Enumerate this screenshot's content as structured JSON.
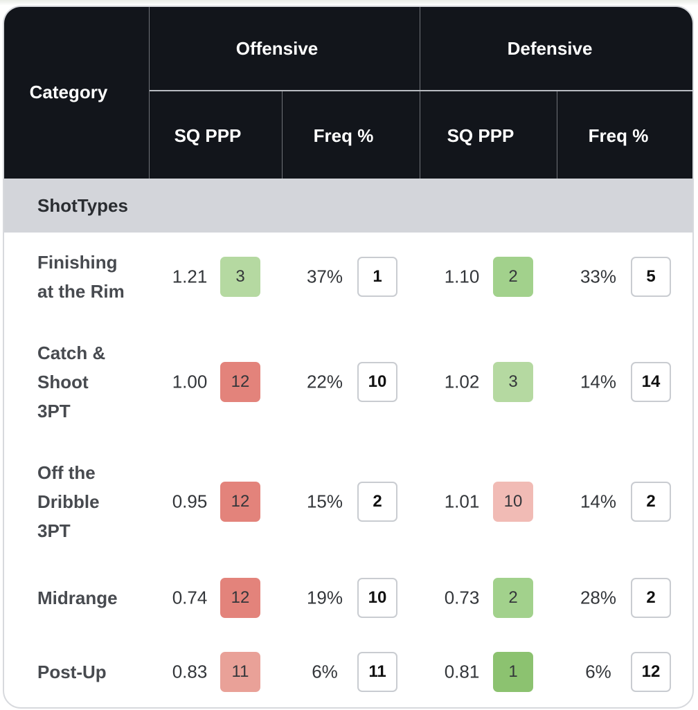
{
  "table": {
    "header": {
      "category": "Category",
      "offensive": "Offensive",
      "defensive": "Defensive",
      "off_ppp": "SQ PPP",
      "off_freq": "Freq %",
      "def_ppp": "SQ PPP",
      "def_freq": "Freq %"
    },
    "section": "ShotTypes",
    "colors": {
      "header_bg": "#12151b",
      "section_bg": "#d3d5da",
      "green_dark": "#8cc270",
      "green_mid": "#a2d18c",
      "green_light": "#b5d9a1",
      "red_dark": "#e3837b",
      "red_mid": "#e9a198",
      "red_light": "#f1bbb5"
    },
    "rows": [
      {
        "name": [
          "Finishing",
          "at the Rim"
        ],
        "off_ppp": "1.21",
        "off_ppp_rank": "3",
        "off_ppp_color": "#b5d9a1",
        "off_freq": "37%",
        "off_freq_rank": "1",
        "def_ppp": "1.10",
        "def_ppp_rank": "2",
        "def_ppp_color": "#a2d18c",
        "def_freq": "33%",
        "def_freq_rank": "5"
      },
      {
        "name": [
          "Catch &",
          "Shoot",
          "3PT"
        ],
        "off_ppp": "1.00",
        "off_ppp_rank": "12",
        "off_ppp_color": "#e3837b",
        "off_freq": "22%",
        "off_freq_rank": "10",
        "def_ppp": "1.02",
        "def_ppp_rank": "3",
        "def_ppp_color": "#b5d9a1",
        "def_freq": "14%",
        "def_freq_rank": "14"
      },
      {
        "name": [
          "Off the",
          "Dribble",
          "3PT"
        ],
        "off_ppp": "0.95",
        "off_ppp_rank": "12",
        "off_ppp_color": "#e3837b",
        "off_freq": "15%",
        "off_freq_rank": "2",
        "def_ppp": "1.01",
        "def_ppp_rank": "10",
        "def_ppp_color": "#f1bbb5",
        "def_freq": "14%",
        "def_freq_rank": "2"
      },
      {
        "name": [
          "Midrange"
        ],
        "off_ppp": "0.74",
        "off_ppp_rank": "12",
        "off_ppp_color": "#e3837b",
        "off_freq": "19%",
        "off_freq_rank": "10",
        "def_ppp": "0.73",
        "def_ppp_rank": "2",
        "def_ppp_color": "#a2d18c",
        "def_freq": "28%",
        "def_freq_rank": "2"
      },
      {
        "name": [
          "Post-Up"
        ],
        "off_ppp": "0.83",
        "off_ppp_rank": "11",
        "off_ppp_color": "#e9a198",
        "off_freq": "6%",
        "off_freq_rank": "11",
        "def_ppp": "0.81",
        "def_ppp_rank": "1",
        "def_ppp_color": "#8cc270",
        "def_freq": "6%",
        "def_freq_rank": "12"
      }
    ]
  }
}
